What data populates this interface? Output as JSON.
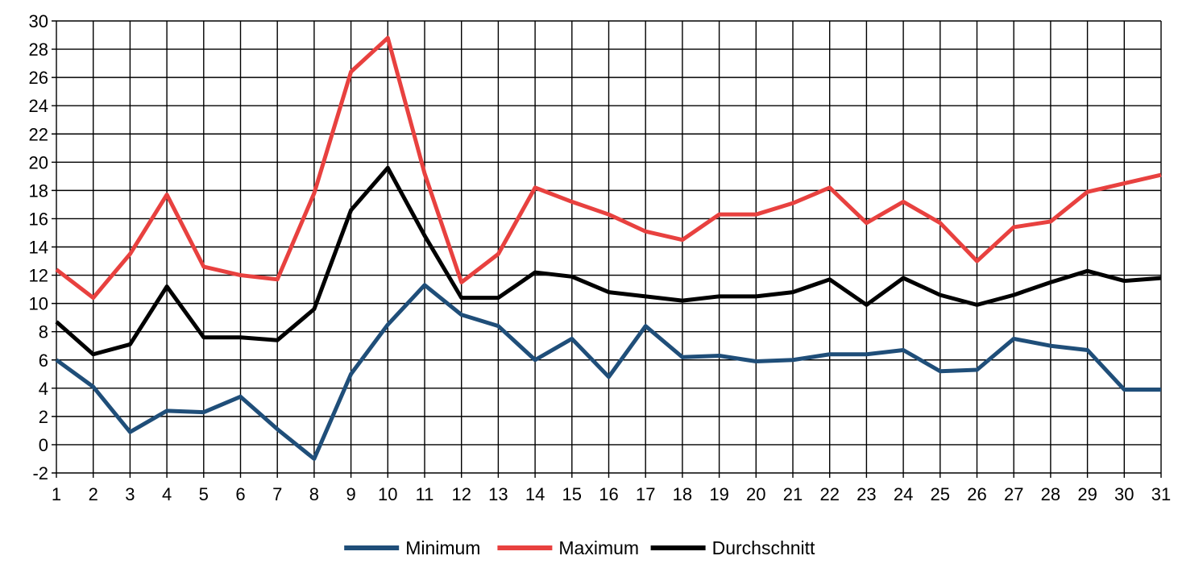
{
  "chart_data": {
    "type": "line",
    "title": "",
    "xlabel": "",
    "ylabel": "",
    "x": [
      1,
      2,
      3,
      4,
      5,
      6,
      7,
      8,
      9,
      10,
      11,
      12,
      13,
      14,
      15,
      16,
      17,
      18,
      19,
      20,
      21,
      22,
      23,
      24,
      25,
      26,
      27,
      28,
      29,
      30,
      31
    ],
    "ylim": [
      -2,
      30
    ],
    "ytick_step": 2,
    "grid": true,
    "legend_position": "bottom",
    "series": [
      {
        "name": "Minimum",
        "color": "#1f4e79",
        "values": [
          6.0,
          4.1,
          0.9,
          2.4,
          2.3,
          3.4,
          1.1,
          -1.0,
          5.0,
          8.5,
          11.3,
          9.2,
          8.4,
          6.0,
          7.5,
          4.8,
          8.4,
          6.2,
          6.3,
          5.9,
          6.0,
          6.4,
          6.4,
          6.7,
          5.2,
          5.3,
          7.5,
          7.0,
          6.7,
          3.9,
          3.9
        ]
      },
      {
        "name": "Maximum",
        "color": "#e8413f",
        "values": [
          12.4,
          10.4,
          13.5,
          17.7,
          12.6,
          12.0,
          11.7,
          17.8,
          26.4,
          28.8,
          19.2,
          11.5,
          13.5,
          18.2,
          17.2,
          16.3,
          15.1,
          14.5,
          16.3,
          16.3,
          17.1,
          18.2,
          15.7,
          17.2,
          15.7,
          13.0,
          15.4,
          15.8,
          17.9,
          18.5,
          19.1
        ]
      },
      {
        "name": "Durchschnitt",
        "color": "#000000",
        "values": [
          8.7,
          6.4,
          7.1,
          11.2,
          7.6,
          7.6,
          7.4,
          9.6,
          16.6,
          19.6,
          14.8,
          10.4,
          10.4,
          12.2,
          11.9,
          10.8,
          10.5,
          10.2,
          10.5,
          10.5,
          10.8,
          11.7,
          9.9,
          11.8,
          10.6,
          9.9,
          10.6,
          11.5,
          12.3,
          11.6,
          11.8
        ]
      }
    ]
  }
}
